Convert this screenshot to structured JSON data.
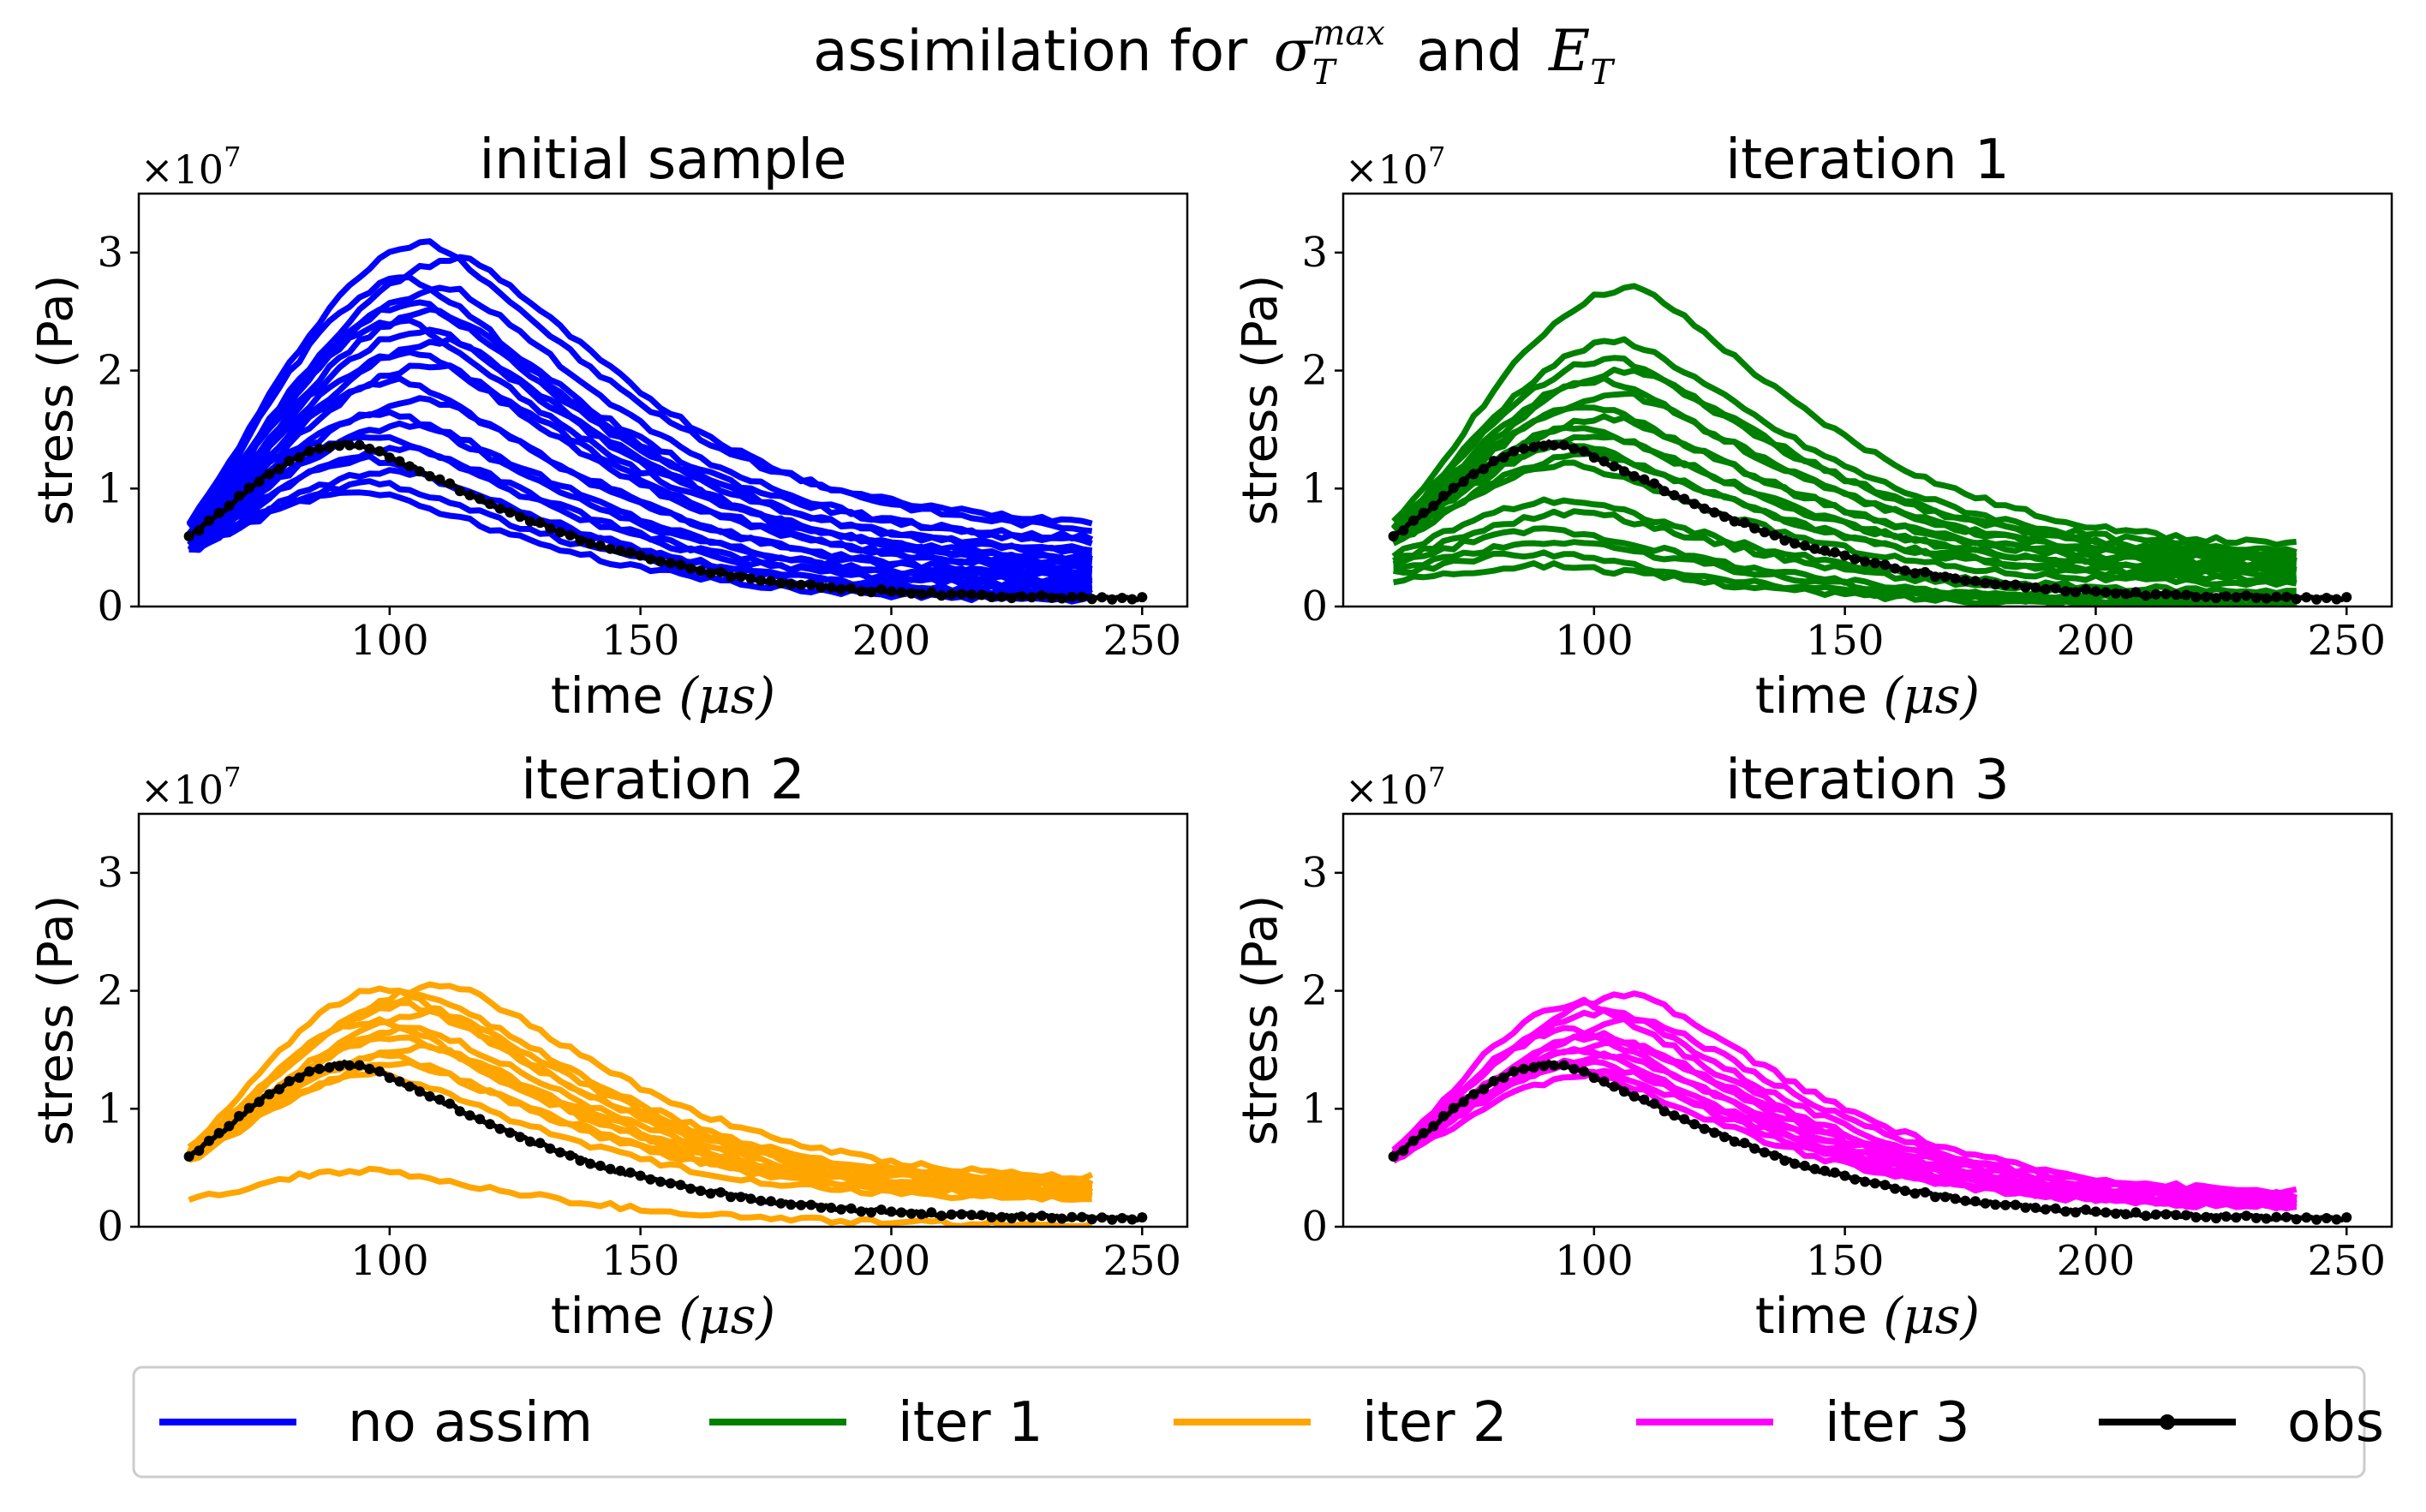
{
  "figure": {
    "suptitle_text": "assimilation for",
    "suptitle_sym1": "σ",
    "suptitle_sym1_sub": "T",
    "suptitle_sym1_sup": "max",
    "suptitle_and": "and",
    "suptitle_sym2": "E",
    "suptitle_sym2_sub": "T",
    "exponent_label": "×10",
    "exponent_power": "7"
  },
  "legend": {
    "placement": "bottom",
    "items": [
      {
        "label": "no assim",
        "color": "#0000ff",
        "marker": false
      },
      {
        "label": "iter 1",
        "color": "#008000",
        "marker": false
      },
      {
        "label": "iter 2",
        "color": "#ffa500",
        "marker": false
      },
      {
        "label": "iter 3",
        "color": "#ff00ff",
        "marker": false
      },
      {
        "label": "obs",
        "color": "#000000",
        "marker": true
      }
    ]
  },
  "chart_data": [
    {
      "type": "line",
      "title": "initial sample",
      "xlabel_text": "time",
      "xlabel_unit": "(μs)",
      "ylabel": "stress (Pa)",
      "xlim": [
        50,
        259
      ],
      "ylim": [
        0,
        3.5
      ],
      "y_scale_exponent": 7,
      "xticks": [
        100,
        150,
        200,
        250
      ],
      "yticks": [
        0,
        1,
        2,
        3
      ],
      "grid": false,
      "ensemble": {
        "color": "#0000ff",
        "x_start": 60,
        "x_end": 240,
        "members": [
          {
            "start": 0.72,
            "peak": 3.08,
            "t_peak": 108,
            "tail": 0.68
          },
          {
            "start": 0.7,
            "peak": 2.95,
            "t_peak": 115,
            "tail": 0.6
          },
          {
            "start": 0.68,
            "peak": 2.78,
            "t_peak": 104,
            "tail": 0.55
          },
          {
            "start": 0.66,
            "peak": 2.7,
            "t_peak": 112,
            "tail": 0.5
          },
          {
            "start": 0.64,
            "peak": 2.58,
            "t_peak": 106,
            "tail": 0.45
          },
          {
            "start": 0.62,
            "peak": 2.5,
            "t_peak": 110,
            "tail": 0.42
          },
          {
            "start": 0.6,
            "peak": 2.42,
            "t_peak": 103,
            "tail": 0.38
          },
          {
            "start": 0.6,
            "peak": 2.35,
            "t_peak": 108,
            "tail": 0.35
          },
          {
            "start": 0.58,
            "peak": 2.25,
            "t_peak": 112,
            "tail": 0.32
          },
          {
            "start": 0.57,
            "peak": 2.15,
            "t_peak": 105,
            "tail": 0.3
          },
          {
            "start": 0.56,
            "peak": 2.05,
            "t_peak": 110,
            "tail": 0.28
          },
          {
            "start": 0.55,
            "peak": 1.92,
            "t_peak": 102,
            "tail": 0.25
          },
          {
            "start": 0.55,
            "peak": 1.75,
            "t_peak": 108,
            "tail": 0.22
          },
          {
            "start": 0.54,
            "peak": 1.65,
            "t_peak": 100,
            "tail": 0.2
          },
          {
            "start": 0.53,
            "peak": 1.55,
            "t_peak": 106,
            "tail": 0.18
          },
          {
            "start": 0.52,
            "peak": 1.45,
            "t_peak": 98,
            "tail": 0.16
          },
          {
            "start": 0.51,
            "peak": 1.35,
            "t_peak": 104,
            "tail": 0.15
          },
          {
            "start": 0.5,
            "peak": 1.25,
            "t_peak": 96,
            "tail": 0.12
          },
          {
            "start": 0.5,
            "peak": 1.15,
            "t_peak": 102,
            "tail": 0.1
          },
          {
            "start": 0.48,
            "peak": 1.05,
            "t_peak": 98,
            "tail": 0.08
          },
          {
            "start": 0.47,
            "peak": 0.98,
            "t_peak": 95,
            "tail": 0.05
          }
        ]
      },
      "observation": {
        "color": "#000000",
        "x_start": 60,
        "x_end": 250,
        "start": 0.6,
        "peak": 1.38,
        "t_peak": 92,
        "tail": 0.06
      }
    },
    {
      "type": "line",
      "title": "iteration 1",
      "xlabel_text": "time",
      "xlabel_unit": "(μs)",
      "ylabel": "stress (Pa)",
      "xlim": [
        50,
        259
      ],
      "ylim": [
        0,
        3.5
      ],
      "y_scale_exponent": 7,
      "xticks": [
        100,
        150,
        200,
        250
      ],
      "yticks": [
        0,
        1,
        2,
        3
      ],
      "grid": false,
      "ensemble": {
        "color": "#008000",
        "x_start": 60,
        "x_end": 240,
        "members": [
          {
            "start": 0.7,
            "peak": 2.7,
            "t_peak": 108,
            "tail": 0.48
          },
          {
            "start": 0.68,
            "peak": 2.25,
            "t_peak": 106,
            "tail": 0.45
          },
          {
            "start": 0.66,
            "peak": 2.1,
            "t_peak": 104,
            "tail": 0.42
          },
          {
            "start": 0.65,
            "peak": 2.0,
            "t_peak": 108,
            "tail": 0.4
          },
          {
            "start": 0.64,
            "peak": 1.92,
            "t_peak": 102,
            "tail": 0.38
          },
          {
            "start": 0.62,
            "peak": 1.8,
            "t_peak": 106,
            "tail": 0.36
          },
          {
            "start": 0.61,
            "peak": 1.7,
            "t_peak": 100,
            "tail": 0.34
          },
          {
            "start": 0.6,
            "peak": 1.6,
            "t_peak": 104,
            "tail": 0.32
          },
          {
            "start": 0.58,
            "peak": 1.52,
            "t_peak": 98,
            "tail": 0.3
          },
          {
            "start": 0.57,
            "peak": 1.45,
            "t_peak": 102,
            "tail": 0.28
          },
          {
            "start": 0.55,
            "peak": 1.38,
            "t_peak": 96,
            "tail": 0.25
          },
          {
            "start": 0.54,
            "peak": 1.3,
            "t_peak": 100,
            "tail": 0.22
          },
          {
            "start": 0.52,
            "peak": 1.2,
            "t_peak": 96,
            "tail": 0.18
          },
          {
            "start": 0.45,
            "peak": 0.9,
            "t_peak": 95,
            "tail": 0.12
          },
          {
            "start": 0.4,
            "peak": 0.8,
            "t_peak": 98,
            "tail": 0.08
          },
          {
            "start": 0.36,
            "peak": 0.65,
            "t_peak": 92,
            "tail": 0.05
          },
          {
            "start": 0.32,
            "peak": 0.55,
            "t_peak": 95,
            "tail": 0.03
          },
          {
            "start": 0.28,
            "peak": 0.45,
            "t_peak": 90,
            "tail": 0.02
          },
          {
            "start": 0.22,
            "peak": 0.35,
            "t_peak": 92,
            "tail": 0.01
          }
        ]
      },
      "observation": {
        "color": "#000000",
        "x_start": 60,
        "x_end": 250,
        "start": 0.6,
        "peak": 1.38,
        "t_peak": 92,
        "tail": 0.06
      }
    },
    {
      "type": "line",
      "title": "iteration 2",
      "xlabel_text": "time",
      "xlabel_unit": "(μs)",
      "ylabel": "stress (Pa)",
      "xlim": [
        50,
        259
      ],
      "ylim": [
        0,
        3.5
      ],
      "y_scale_exponent": 7,
      "xticks": [
        100,
        150,
        200,
        250
      ],
      "yticks": [
        0,
        1,
        2,
        3
      ],
      "grid": false,
      "ensemble": {
        "color": "#ffa500",
        "x_start": 60,
        "x_end": 240,
        "members": [
          {
            "start": 0.66,
            "peak": 2.05,
            "t_peak": 112,
            "tail": 0.38
          },
          {
            "start": 0.65,
            "peak": 2.02,
            "t_peak": 100,
            "tail": 0.36
          },
          {
            "start": 0.64,
            "peak": 1.95,
            "t_peak": 108,
            "tail": 0.34
          },
          {
            "start": 0.63,
            "peak": 1.88,
            "t_peak": 104,
            "tail": 0.32
          },
          {
            "start": 0.62,
            "peak": 1.82,
            "t_peak": 110,
            "tail": 0.3
          },
          {
            "start": 0.62,
            "peak": 1.75,
            "t_peak": 98,
            "tail": 0.29
          },
          {
            "start": 0.61,
            "peak": 1.68,
            "t_peak": 106,
            "tail": 0.28
          },
          {
            "start": 0.6,
            "peak": 1.6,
            "t_peak": 102,
            "tail": 0.27
          },
          {
            "start": 0.6,
            "peak": 1.52,
            "t_peak": 108,
            "tail": 0.26
          },
          {
            "start": 0.59,
            "peak": 1.45,
            "t_peak": 100,
            "tail": 0.25
          },
          {
            "start": 0.58,
            "peak": 1.38,
            "t_peak": 104,
            "tail": 0.24
          },
          {
            "start": 0.57,
            "peak": 1.3,
            "t_peak": 98,
            "tail": 0.22
          },
          {
            "start": 0.22,
            "peak": 0.48,
            "t_peak": 95,
            "tail": 0.01
          }
        ]
      },
      "observation": {
        "color": "#000000",
        "x_start": 60,
        "x_end": 250,
        "start": 0.6,
        "peak": 1.38,
        "t_peak": 92,
        "tail": 0.06
      }
    },
    {
      "type": "line",
      "title": "iteration 3",
      "xlabel_text": "time",
      "xlabel_unit": "(μs)",
      "ylabel": "stress (Pa)",
      "xlim": [
        50,
        259
      ],
      "ylim": [
        0,
        3.5
      ],
      "y_scale_exponent": 7,
      "xticks": [
        100,
        150,
        200,
        250
      ],
      "yticks": [
        0,
        1,
        2,
        3
      ],
      "grid": false,
      "ensemble": {
        "color": "#ff00ff",
        "x_start": 60,
        "x_end": 240,
        "members": [
          {
            "start": 0.64,
            "peak": 1.96,
            "t_peak": 108,
            "tail": 0.26
          },
          {
            "start": 0.63,
            "peak": 1.9,
            "t_peak": 98,
            "tail": 0.25
          },
          {
            "start": 0.63,
            "peak": 1.82,
            "t_peak": 104,
            "tail": 0.24
          },
          {
            "start": 0.62,
            "peak": 1.75,
            "t_peak": 110,
            "tail": 0.23
          },
          {
            "start": 0.62,
            "peak": 1.68,
            "t_peak": 96,
            "tail": 0.22
          },
          {
            "start": 0.61,
            "peak": 1.62,
            "t_peak": 102,
            "tail": 0.21
          },
          {
            "start": 0.61,
            "peak": 1.56,
            "t_peak": 106,
            "tail": 0.2
          },
          {
            "start": 0.6,
            "peak": 1.5,
            "t_peak": 98,
            "tail": 0.19
          },
          {
            "start": 0.6,
            "peak": 1.45,
            "t_peak": 104,
            "tail": 0.18
          },
          {
            "start": 0.59,
            "peak": 1.4,
            "t_peak": 100,
            "tail": 0.17
          },
          {
            "start": 0.58,
            "peak": 1.35,
            "t_peak": 96,
            "tail": 0.16
          },
          {
            "start": 0.58,
            "peak": 1.3,
            "t_peak": 102,
            "tail": 0.15
          }
        ]
      },
      "observation": {
        "color": "#000000",
        "x_start": 60,
        "x_end": 250,
        "start": 0.6,
        "peak": 1.38,
        "t_peak": 92,
        "tail": 0.06
      }
    }
  ]
}
